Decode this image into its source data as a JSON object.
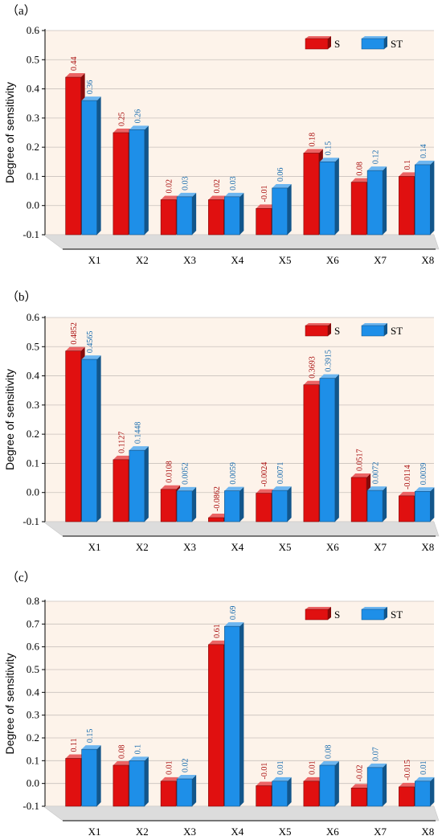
{
  "chart_data": [
    {
      "type": "bar",
      "panel_label": "（a）",
      "ylabel": "Degree of sensitivity",
      "xlabel": "",
      "categories": [
        "X1",
        "X2",
        "X3",
        "X4",
        "X5",
        "X6",
        "X7",
        "X8"
      ],
      "ylim": [
        -0.1,
        0.6
      ],
      "yticks": [
        -0.1,
        0.0,
        0.1,
        0.2,
        0.3,
        0.4,
        0.5,
        0.6
      ],
      "ytick_labels": [
        "-0.1",
        "0.0",
        "0.1",
        "0.2",
        "0.3",
        "0.4",
        "0.5",
        "0.6"
      ],
      "grid": true,
      "legend_position": "top-right",
      "series": [
        {
          "name": "S",
          "color": "#e01010",
          "values": [
            0.44,
            0.25,
            0.02,
            0.02,
            -0.01,
            0.18,
            0.08,
            0.1
          ],
          "labels": [
            "0.44",
            "0.25",
            "0.02",
            "0.02",
            "-0.01",
            "0.18",
            "0.08",
            "0.1"
          ]
        },
        {
          "name": "ST",
          "color": "#1e8fe8",
          "values": [
            0.36,
            0.26,
            0.03,
            0.03,
            0.06,
            0.15,
            0.12,
            0.14
          ],
          "labels": [
            "0.36",
            "0.26",
            "0.03",
            "0.03",
            "0.06",
            "0.15",
            "0.12",
            "0.14"
          ]
        }
      ]
    },
    {
      "type": "bar",
      "panel_label": "（b）",
      "ylabel": "Degree of sensitivity",
      "xlabel": "",
      "categories": [
        "X1",
        "X2",
        "X3",
        "X4",
        "X5",
        "X6",
        "X7",
        "X8"
      ],
      "ylim": [
        -0.1,
        0.6
      ],
      "yticks": [
        -0.1,
        0.0,
        0.1,
        0.2,
        0.3,
        0.4,
        0.5,
        0.6
      ],
      "ytick_labels": [
        "-0.1",
        "0.0",
        "0.1",
        "0.2",
        "0.3",
        "0.4",
        "0.5",
        "0.6"
      ],
      "grid": true,
      "legend_position": "top-right",
      "series": [
        {
          "name": "S",
          "color": "#e01010",
          "values": [
            0.4852,
            0.1127,
            0.0108,
            -0.0862,
            -0.0024,
            0.3693,
            0.0517,
            -0.0114
          ],
          "labels": [
            "0.4852",
            "0.1127",
            "0.0108",
            "-0.0862",
            "-0.0024",
            "0.3693",
            "0.0517",
            "-0.0114"
          ]
        },
        {
          "name": "ST",
          "color": "#1e8fe8",
          "values": [
            0.4565,
            0.1448,
            0.0052,
            0.0059,
            0.0071,
            0.3915,
            0.0072,
            0.0039
          ],
          "labels": [
            "0.4565",
            "0.1448",
            "0.0052",
            "0.0059",
            "0.0071",
            "0.3915",
            "0.0072",
            "0.0039"
          ]
        }
      ]
    },
    {
      "type": "bar",
      "panel_label": "（c）",
      "ylabel": "Degree of sensitivity",
      "xlabel": "",
      "categories": [
        "X1",
        "X2",
        "X3",
        "X4",
        "X5",
        "X6",
        "X7",
        "X8"
      ],
      "ylim": [
        -0.1,
        0.8
      ],
      "yticks": [
        -0.1,
        0.0,
        0.1,
        0.2,
        0.3,
        0.4,
        0.5,
        0.6,
        0.7,
        0.8
      ],
      "ytick_labels": [
        "-0.1",
        "0.0",
        "0.1",
        "0.2",
        "0.3",
        "0.4",
        "0.5",
        "0.6",
        "0.7",
        "0.8"
      ],
      "grid": true,
      "legend_position": "top-right",
      "series": [
        {
          "name": "S",
          "color": "#e01010",
          "values": [
            0.11,
            0.08,
            0.01,
            0.61,
            -0.01,
            0.01,
            -0.02,
            -0.015
          ],
          "labels": [
            "0.11",
            "0.08",
            "0.01",
            "0.61",
            "-0.01",
            "0.01",
            "-0.02",
            "-0.015"
          ]
        },
        {
          "name": "ST",
          "color": "#1e8fe8",
          "values": [
            0.15,
            0.1,
            0.02,
            0.69,
            0.01,
            0.08,
            0.07,
            0.01
          ],
          "labels": [
            "0.15",
            "0.1",
            "0.02",
            "0.69",
            "0.01",
            "0.08",
            "0.07",
            "0.01"
          ]
        }
      ]
    }
  ]
}
